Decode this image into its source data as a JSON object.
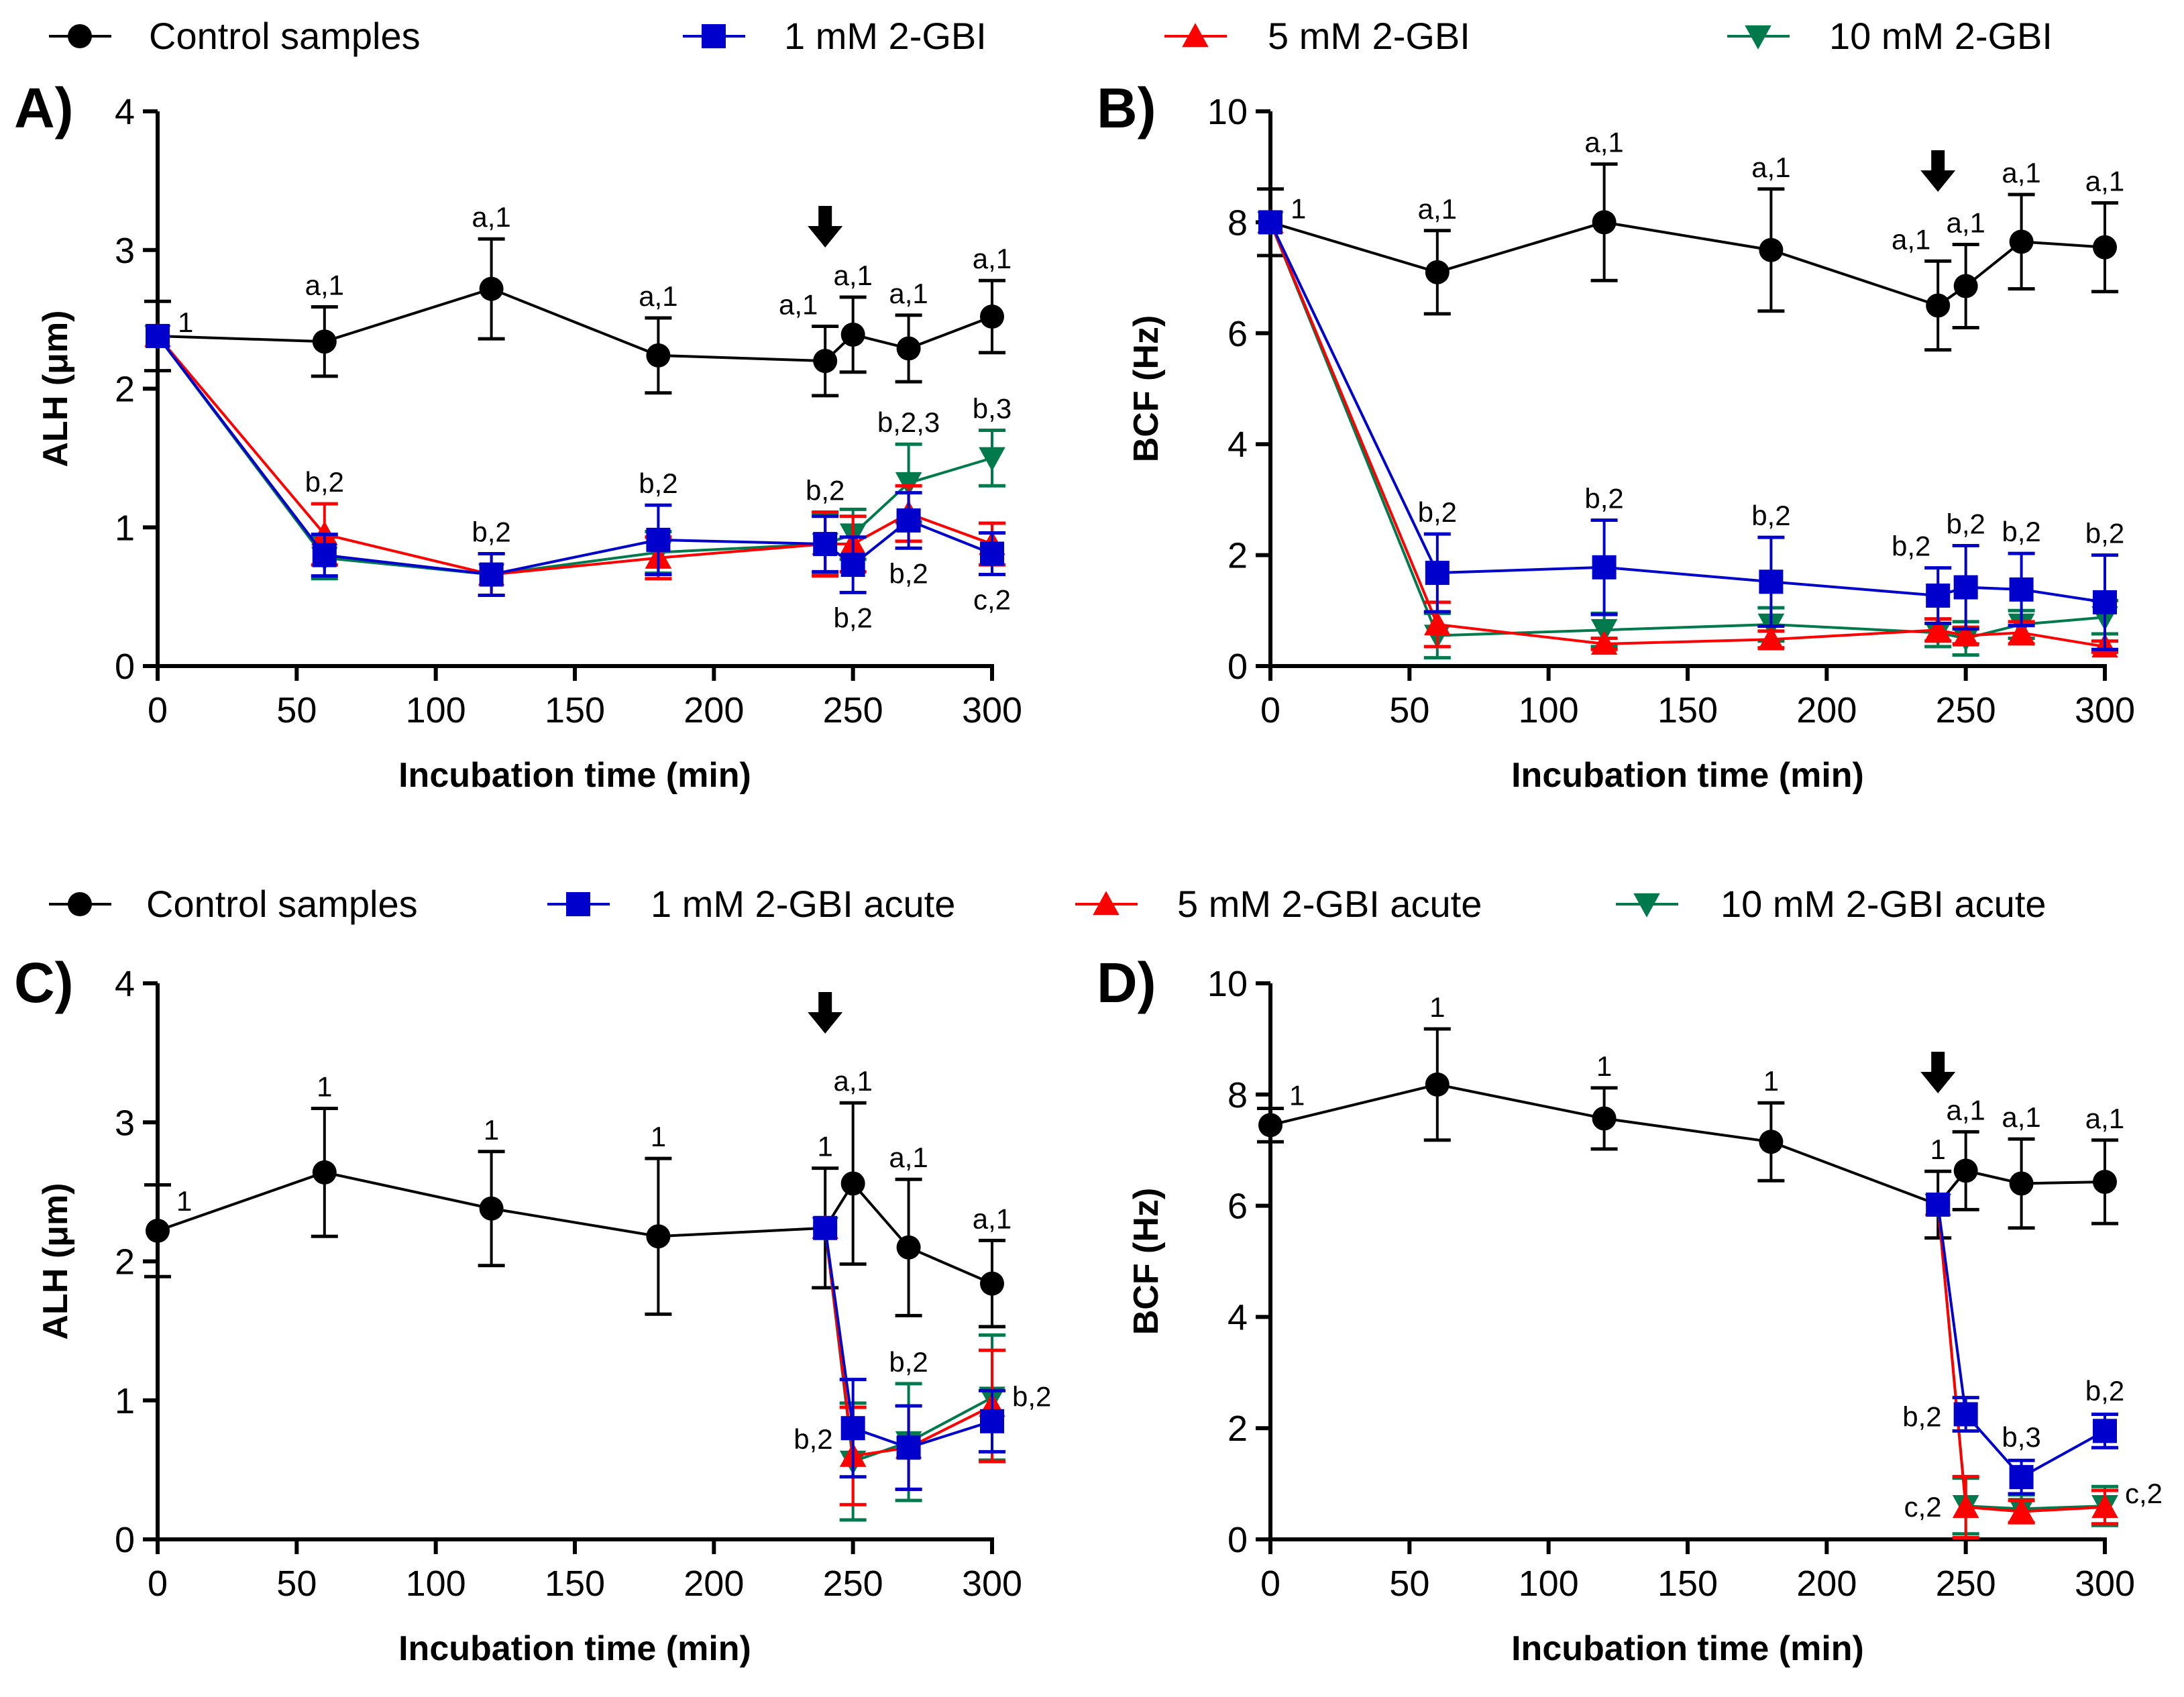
{
  "colors": {
    "control": "#000000",
    "mM1": "#0000cc",
    "mM5": "#ff0000",
    "mM10": "#007a4d"
  },
  "legend_top": [
    "Control samples",
    "1 mM 2-GBI",
    "5 mM 2-GBI",
    "10 mM 2-GBI"
  ],
  "legend_bottom": [
    "Control samples",
    "1 mM 2-GBI acute",
    "5 mM 2-GBI acute",
    "10 mM 2-GBI acute"
  ],
  "chart_data": [
    {
      "type": "line",
      "panel": "A)",
      "xlabel": "Incubation time (min)",
      "ylabel": "ALH (μm)",
      "xlim": [
        0,
        300
      ],
      "ylim": [
        0,
        4
      ],
      "xticks": [
        0,
        50,
        100,
        150,
        200,
        250,
        300
      ],
      "yticks": [
        0,
        1,
        2,
        3,
        4
      ],
      "arrow_at": 240,
      "series": [
        {
          "name": "Control samples",
          "marker": "circle",
          "color": "#000000",
          "x": [
            0,
            60,
            120,
            180,
            240,
            250,
            270,
            300
          ],
          "y": [
            2.38,
            2.34,
            2.72,
            2.24,
            2.2,
            2.39,
            2.29,
            2.52
          ],
          "err": [
            0.25,
            0.25,
            0.36,
            0.27,
            0.25,
            0.27,
            0.24,
            0.26
          ]
        },
        {
          "name": "10 mM 2-GBI",
          "marker": "tri-down",
          "color": "#007a4d",
          "x": [
            0,
            60,
            120,
            180,
            240,
            250,
            270,
            300
          ],
          "y": [
            2.38,
            0.78,
            0.66,
            0.82,
            0.88,
            0.95,
            1.32,
            1.5
          ],
          "err": [
            0,
            0.15,
            0.15,
            0.15,
            0.22,
            0.18,
            0.28,
            0.2
          ]
        },
        {
          "name": "5 mM 2-GBI",
          "marker": "tri-up",
          "color": "#ff0000",
          "x": [
            0,
            60,
            120,
            180,
            240,
            250,
            270,
            300
          ],
          "y": [
            2.38,
            0.95,
            0.66,
            0.78,
            0.88,
            0.88,
            1.1,
            0.88
          ],
          "err": [
            0,
            0.22,
            0.15,
            0.15,
            0.23,
            0.2,
            0.2,
            0.15
          ]
        },
        {
          "name": "1 mM 2-GBI",
          "marker": "square",
          "color": "#0000cc",
          "x": [
            0,
            60,
            120,
            180,
            240,
            250,
            270,
            300
          ],
          "y": [
            2.38,
            0.8,
            0.66,
            0.91,
            0.88,
            0.73,
            1.05,
            0.81
          ],
          "err": [
            0,
            0.15,
            0.15,
            0.25,
            0.2,
            0.2,
            0.2,
            0.15
          ]
        }
      ],
      "annotations": [
        {
          "x": 0,
          "y": 2.38,
          "text": "1",
          "pos": "right"
        },
        {
          "x": 60,
          "y": 2.59,
          "text": "a,1",
          "pos": "above"
        },
        {
          "x": 120,
          "y": 3.08,
          "text": "a,1",
          "pos": "above"
        },
        {
          "x": 180,
          "y": 2.51,
          "text": "a,1",
          "pos": "above"
        },
        {
          "x": 240,
          "y": 2.45,
          "text": "a,1",
          "pos": "aboveleft"
        },
        {
          "x": 250,
          "y": 2.66,
          "text": "a,1",
          "pos": "above"
        },
        {
          "x": 270,
          "y": 2.53,
          "text": "a,1",
          "pos": "above"
        },
        {
          "x": 300,
          "y": 2.78,
          "text": "a,1",
          "pos": "above"
        },
        {
          "x": 60,
          "y": 1.17,
          "text": "b,2",
          "pos": "above"
        },
        {
          "x": 120,
          "y": 0.81,
          "text": "b,2",
          "pos": "above"
        },
        {
          "x": 180,
          "y": 1.16,
          "text": "b,2",
          "pos": "above"
        },
        {
          "x": 240,
          "y": 1.11,
          "text": "b,2",
          "pos": "above"
        },
        {
          "x": 250,
          "y": 0.53,
          "text": "b,2",
          "pos": "below"
        },
        {
          "x": 270,
          "y": 1.6,
          "text": "b,2,3",
          "pos": "above"
        },
        {
          "x": 270,
          "y": 0.85,
          "text": "b,2",
          "pos": "below"
        },
        {
          "x": 300,
          "y": 1.7,
          "text": "b,3",
          "pos": "above"
        },
        {
          "x": 300,
          "y": 0.66,
          "text": "c,2",
          "pos": "below"
        }
      ]
    },
    {
      "type": "line",
      "panel": "B)",
      "xlabel": "Incubation time (min)",
      "ylabel": "BCF (Hz)",
      "xlim": [
        0,
        300
      ],
      "ylim": [
        0,
        10
      ],
      "xticks": [
        0,
        50,
        100,
        150,
        200,
        250,
        300
      ],
      "yticks": [
        0,
        2,
        4,
        6,
        8,
        10
      ],
      "arrow_at": 240,
      "series": [
        {
          "name": "Control samples",
          "marker": "circle",
          "color": "#000000",
          "x": [
            0,
            60,
            120,
            180,
            240,
            250,
            270,
            300
          ],
          "y": [
            8.0,
            7.1,
            8.0,
            7.5,
            6.5,
            6.85,
            7.65,
            7.55
          ],
          "err": [
            0.6,
            0.75,
            1.05,
            1.1,
            0.8,
            0.75,
            0.85,
            0.8
          ]
        },
        {
          "name": "10 mM 2-GBI",
          "marker": "tri-down",
          "color": "#007a4d",
          "x": [
            0,
            60,
            120,
            180,
            240,
            250,
            270,
            300
          ],
          "y": [
            8.0,
            0.55,
            0.65,
            0.75,
            0.6,
            0.5,
            0.75,
            0.88
          ],
          "err": [
            0,
            0.4,
            0.3,
            0.3,
            0.25,
            0.3,
            0.25,
            0.3
          ]
        },
        {
          "name": "5 mM 2-GBI",
          "marker": "tri-up",
          "color": "#ff0000",
          "x": [
            0,
            60,
            120,
            180,
            240,
            250,
            270,
            300
          ],
          "y": [
            8.0,
            0.75,
            0.4,
            0.48,
            0.65,
            0.55,
            0.6,
            0.35
          ],
          "err": [
            0,
            0.4,
            0.1,
            0.15,
            0.2,
            0.15,
            0.2,
            0.1
          ]
        },
        {
          "name": "1 mM 2-GBI",
          "marker": "square",
          "color": "#0000cc",
          "x": [
            0,
            60,
            120,
            180,
            240,
            250,
            270,
            300
          ],
          "y": [
            8.0,
            1.68,
            1.78,
            1.52,
            1.27,
            1.42,
            1.38,
            1.15
          ],
          "err": [
            0,
            0.7,
            0.85,
            0.8,
            0.5,
            0.75,
            0.65,
            0.85
          ]
        }
      ],
      "annotations": [
        {
          "x": 0,
          "y": 8.0,
          "text": "1",
          "pos": "right"
        },
        {
          "x": 60,
          "y": 7.85,
          "text": "a,1",
          "pos": "above"
        },
        {
          "x": 120,
          "y": 9.05,
          "text": "a,1",
          "pos": "above"
        },
        {
          "x": 180,
          "y": 8.6,
          "text": "a,1",
          "pos": "above"
        },
        {
          "x": 240,
          "y": 7.3,
          "text": "a,1",
          "pos": "aboveleft"
        },
        {
          "x": 250,
          "y": 7.6,
          "text": "a,1",
          "pos": "above"
        },
        {
          "x": 270,
          "y": 8.5,
          "text": "a,1",
          "pos": "above"
        },
        {
          "x": 300,
          "y": 8.35,
          "text": "a,1",
          "pos": "above"
        },
        {
          "x": 60,
          "y": 2.38,
          "text": "b,2",
          "pos": "above"
        },
        {
          "x": 120,
          "y": 2.63,
          "text": "b,2",
          "pos": "above"
        },
        {
          "x": 180,
          "y": 2.32,
          "text": "b,2",
          "pos": "above"
        },
        {
          "x": 240,
          "y": 1.77,
          "text": "b,2",
          "pos": "aboveleft"
        },
        {
          "x": 250,
          "y": 2.17,
          "text": "b,2",
          "pos": "above"
        },
        {
          "x": 270,
          "y": 2.03,
          "text": "b,2",
          "pos": "above"
        },
        {
          "x": 300,
          "y": 2.0,
          "text": "b,2",
          "pos": "above"
        }
      ]
    },
    {
      "type": "line",
      "panel": "C)",
      "xlabel": "Incubation time (min)",
      "ylabel": "ALH (μm)",
      "xlim": [
        0,
        300
      ],
      "ylim": [
        0,
        4
      ],
      "xticks": [
        0,
        50,
        100,
        150,
        200,
        250,
        300
      ],
      "yticks": [
        0,
        1,
        2,
        3,
        4
      ],
      "arrow_at": 240,
      "series": [
        {
          "name": "Control samples",
          "marker": "circle",
          "color": "#000000",
          "x": [
            0,
            60,
            120,
            180,
            240,
            250,
            270,
            300
          ],
          "y": [
            2.22,
            2.64,
            2.38,
            2.18,
            2.24,
            2.56,
            2.1,
            1.84
          ],
          "err": [
            0.33,
            0.46,
            0.41,
            0.56,
            0.43,
            0.58,
            0.49,
            0.31
          ]
        },
        {
          "name": "10 mM 2-GBI acute",
          "marker": "tri-down",
          "color": "#007a4d",
          "x": [
            240,
            250,
            270,
            300
          ],
          "y": [
            2.24,
            0.56,
            0.7,
            1.02
          ],
          "err": [
            0,
            0.42,
            0.42,
            0.45
          ]
        },
        {
          "name": "5 mM 2-GBI acute",
          "marker": "tri-up",
          "color": "#ff0000",
          "x": [
            240,
            250,
            270,
            300
          ],
          "y": [
            2.24,
            0.6,
            0.66,
            0.96
          ],
          "err": [
            0,
            0.35,
            0.3,
            0.4
          ]
        },
        {
          "name": "1 mM 2-GBI acute",
          "marker": "square",
          "color": "#0000cc",
          "x": [
            240,
            250,
            270,
            300
          ],
          "y": [
            2.24,
            0.8,
            0.66,
            0.85
          ],
          "err": [
            0,
            0.35,
            0.3,
            0.22
          ]
        }
      ],
      "annotations": [
        {
          "x": 0,
          "y": 2.22,
          "text": "1",
          "pos": "upright"
        },
        {
          "x": 60,
          "y": 3.1,
          "text": "1",
          "pos": "above"
        },
        {
          "x": 120,
          "y": 2.79,
          "text": "1",
          "pos": "above"
        },
        {
          "x": 180,
          "y": 2.74,
          "text": "1",
          "pos": "above"
        },
        {
          "x": 240,
          "y": 2.67,
          "text": "1",
          "pos": "above"
        },
        {
          "x": 250,
          "y": 3.14,
          "text": "a,1",
          "pos": "above"
        },
        {
          "x": 270,
          "y": 2.59,
          "text": "a,1",
          "pos": "above"
        },
        {
          "x": 300,
          "y": 2.15,
          "text": "a,1",
          "pos": "above"
        },
        {
          "x": 250,
          "y": 0.72,
          "text": "b,2",
          "pos": "left"
        },
        {
          "x": 270,
          "y": 1.12,
          "text": "b,2",
          "pos": "above"
        },
        {
          "x": 300,
          "y": 0.93,
          "text": "b,2",
          "pos": "right"
        }
      ]
    },
    {
      "type": "line",
      "panel": "D)",
      "xlabel": "Incubation time (min)",
      "ylabel": "BCF (Hz)",
      "xlim": [
        0,
        300
      ],
      "ylim": [
        0,
        10
      ],
      "xticks": [
        0,
        50,
        100,
        150,
        200,
        250,
        300
      ],
      "yticks": [
        0,
        2,
        4,
        6,
        8,
        10
      ],
      "arrow_at": 240,
      "series": [
        {
          "name": "Control samples",
          "marker": "circle",
          "color": "#000000",
          "x": [
            0,
            60,
            120,
            180,
            240,
            250,
            270,
            300
          ],
          "y": [
            7.45,
            8.18,
            7.57,
            7.15,
            6.02,
            6.63,
            6.4,
            6.43
          ],
          "err": [
            0.3,
            1.0,
            0.55,
            0.7,
            0.6,
            0.7,
            0.8,
            0.75
          ]
        },
        {
          "name": "10 mM 2-GBI acute",
          "marker": "tri-down",
          "color": "#007a4d",
          "x": [
            240,
            250,
            270,
            300
          ],
          "y": [
            6.02,
            0.6,
            0.55,
            0.6
          ],
          "err": [
            0,
            0.5,
            0.25,
            0.35
          ]
        },
        {
          "name": "5 mM 2-GBI acute",
          "marker": "tri-up",
          "color": "#ff0000",
          "x": [
            240,
            250,
            270,
            300
          ],
          "y": [
            6.02,
            0.58,
            0.5,
            0.58
          ],
          "err": [
            0,
            0.55,
            0.2,
            0.3
          ]
        },
        {
          "name": "1 mM 2-GBI acute",
          "marker": "square",
          "color": "#0000cc",
          "x": [
            240,
            250,
            270,
            300
          ],
          "y": [
            6.02,
            2.25,
            1.12,
            1.95
          ],
          "err": [
            0,
            0.3,
            0.3,
            0.3
          ]
        }
      ],
      "annotations": [
        {
          "x": 0,
          "y": 7.45,
          "text": "1",
          "pos": "upright"
        },
        {
          "x": 60,
          "y": 9.18,
          "text": "1",
          "pos": "above"
        },
        {
          "x": 120,
          "y": 8.12,
          "text": "1",
          "pos": "above"
        },
        {
          "x": 180,
          "y": 7.85,
          "text": "1",
          "pos": "above"
        },
        {
          "x": 240,
          "y": 6.62,
          "text": "1",
          "pos": "above"
        },
        {
          "x": 250,
          "y": 7.33,
          "text": "a,1",
          "pos": "above"
        },
        {
          "x": 270,
          "y": 7.2,
          "text": "a,1",
          "pos": "above"
        },
        {
          "x": 300,
          "y": 7.18,
          "text": "a,1",
          "pos": "above"
        },
        {
          "x": 250,
          "y": 2.2,
          "text": "b,2",
          "pos": "leftwide"
        },
        {
          "x": 270,
          "y": 1.45,
          "text": "b,3",
          "pos": "above"
        },
        {
          "x": 300,
          "y": 2.28,
          "text": "b,2",
          "pos": "above"
        },
        {
          "x": 250,
          "y": 0.58,
          "text": "c,2",
          "pos": "leftwide"
        },
        {
          "x": 300,
          "y": 0.58,
          "text": "c,2",
          "pos": "right"
        }
      ]
    }
  ]
}
